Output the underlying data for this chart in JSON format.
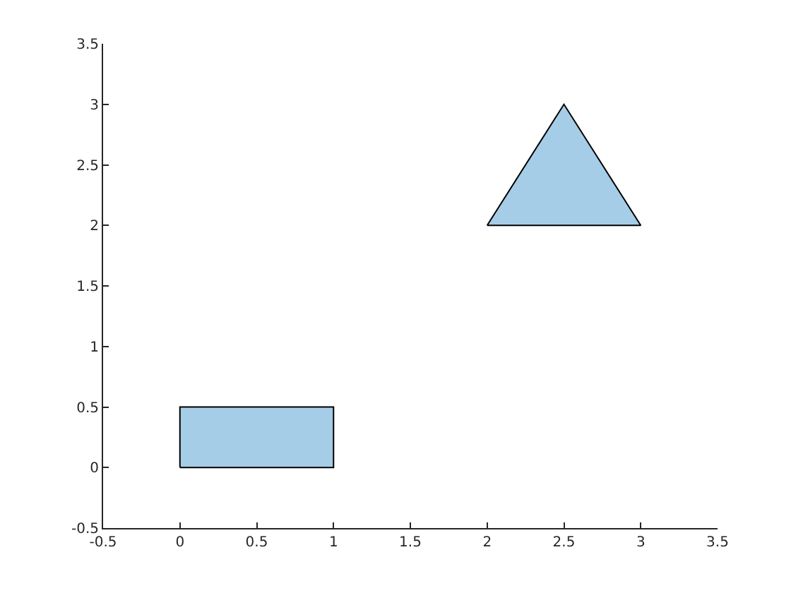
{
  "chart_data": {
    "type": "area",
    "series": [
      {
        "color": "#a6cde8",
        "x": [
          0,
          1,
          1,
          0,
          0
        ],
        "values": [
          0,
          0,
          0.5,
          0.5,
          0
        ]
      },
      {
        "color": "#a6cde8",
        "x": [
          2,
          3,
          2.5,
          2
        ],
        "values": [
          2,
          2,
          3,
          2
        ]
      }
    ],
    "xlim": [
      -0.5,
      3.5
    ],
    "xticks": [
      -0.5,
      0,
      0.5,
      1,
      1.5,
      2,
      2.5,
      3,
      3.5
    ],
    "ylim": [
      -0.5,
      3.5
    ],
    "yticks": [
      -0.5,
      0,
      0.5,
      1,
      1.5,
      2,
      2.5,
      3,
      3.5
    ],
    "marker": "none"
  }
}
